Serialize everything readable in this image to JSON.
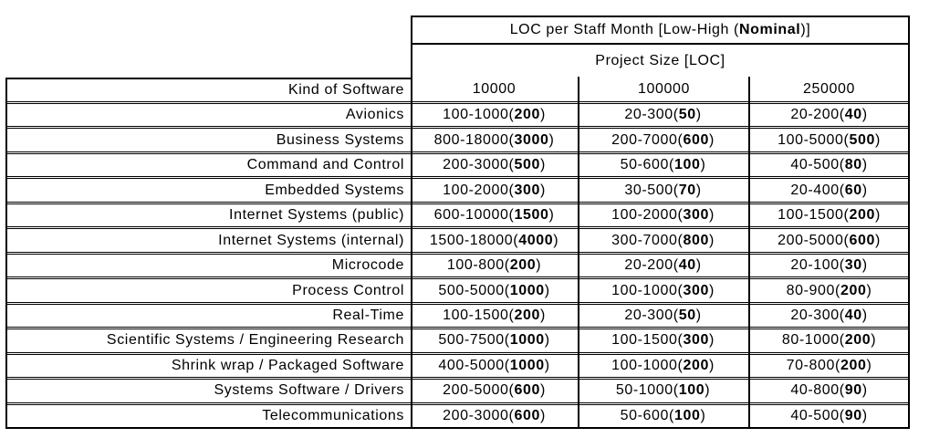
{
  "colors": {
    "background": "#ffffff",
    "border": "#000000",
    "text": "#000000"
  },
  "header": {
    "title_pre": "LOC per Staff Month [Low-High (",
    "title_bold": "Nominal",
    "title_post": ")]",
    "subtitle": "Project Size [LOC]",
    "kind_label": "Kind of Software",
    "sizes": [
      "10000",
      "100000",
      "250000"
    ]
  },
  "rows": [
    {
      "kind": "Avionics",
      "c1": {
        "pre": "100-1000(",
        "nom": "200",
        "post": ")"
      },
      "c2": {
        "pre": "20-300(",
        "nom": "50",
        "post": ")"
      },
      "c3": {
        "pre": "20-200(",
        "nom": "40",
        "post": ")"
      }
    },
    {
      "kind": "Business Systems",
      "c1": {
        "pre": "800-18000(",
        "nom": "3000",
        "post": ")"
      },
      "c2": {
        "pre": "200-7000(",
        "nom": "600",
        "post": ")"
      },
      "c3": {
        "pre": "100-5000(",
        "nom": "500",
        "post": ")"
      }
    },
    {
      "kind": "Command and Control",
      "c1": {
        "pre": "200-3000(",
        "nom": "500",
        "post": ")"
      },
      "c2": {
        "pre": "50-600(",
        "nom": "100",
        "post": ")"
      },
      "c3": {
        "pre": "40-500(",
        "nom": "80",
        "post": ")"
      }
    },
    {
      "kind": "Embedded Systems",
      "c1": {
        "pre": "100-2000(",
        "nom": "300",
        "post": ")"
      },
      "c2": {
        "pre": "30-500(",
        "nom": "70",
        "post": ")"
      },
      "c3": {
        "pre": "20-400(",
        "nom": "60",
        "post": ")"
      }
    },
    {
      "kind": "Internet Systems (public)",
      "c1": {
        "pre": "600-10000(",
        "nom": "1500",
        "post": ")"
      },
      "c2": {
        "pre": "100-2000(",
        "nom": "300",
        "post": ")"
      },
      "c3": {
        "pre": "100-1500(",
        "nom": "200",
        "post": ")"
      }
    },
    {
      "kind": "Internet Systems (internal)",
      "c1": {
        "pre": "1500-18000(",
        "nom": "4000",
        "post": ")"
      },
      "c2": {
        "pre": "300-7000(",
        "nom": "800",
        "post": ")"
      },
      "c3": {
        "pre": "200-5000(",
        "nom": "600",
        "post": ")"
      }
    },
    {
      "kind": "Microcode",
      "c1": {
        "pre": "100-800(",
        "nom": "200",
        "post": ")"
      },
      "c2": {
        "pre": "20-200(",
        "nom": "40",
        "post": ")"
      },
      "c3": {
        "pre": "20-100(",
        "nom": "30",
        "post": ")"
      }
    },
    {
      "kind": "Process Control",
      "c1": {
        "pre": "500-5000(",
        "nom": "1000",
        "post": ")"
      },
      "c2": {
        "pre": "100-1000(",
        "nom": "300",
        "post": ")"
      },
      "c3": {
        "pre": "80-900(",
        "nom": "200",
        "post": ")"
      }
    },
    {
      "kind": "Real-Time",
      "c1": {
        "pre": "100-1500(",
        "nom": "200",
        "post": ")"
      },
      "c2": {
        "pre": "20-300(",
        "nom": "50",
        "post": ")"
      },
      "c3": {
        "pre": "20-300(",
        "nom": "40",
        "post": ")"
      }
    },
    {
      "kind": "Scientific Systems / Engineering Research",
      "c1": {
        "pre": "500-7500(",
        "nom": "1000",
        "post": ")"
      },
      "c2": {
        "pre": "100-1500(",
        "nom": "300",
        "post": ")"
      },
      "c3": {
        "pre": "80-1000(",
        "nom": "200",
        "post": ")"
      }
    },
    {
      "kind": "Shrink wrap / Packaged Software",
      "c1": {
        "pre": "400-5000(",
        "nom": "1000",
        "post": ")"
      },
      "c2": {
        "pre": "100-1000(",
        "nom": "200",
        "post": ")"
      },
      "c3": {
        "pre": "70-800(",
        "nom": "200",
        "post": ")"
      }
    },
    {
      "kind": "Systems Software / Drivers",
      "c1": {
        "pre": "200-5000(",
        "nom": "600",
        "post": ")"
      },
      "c2": {
        "pre": "50-1000(",
        "nom": "100",
        "post": ")"
      },
      "c3": {
        "pre": "40-800(",
        "nom": "90",
        "post": ")"
      }
    },
    {
      "kind": "Telecommunications",
      "c1": {
        "pre": "200-3000(",
        "nom": "600",
        "post": ")"
      },
      "c2": {
        "pre": "50-600(",
        "nom": "100",
        "post": ")"
      },
      "c3": {
        "pre": "40-500(",
        "nom": "90",
        "post": ")"
      }
    }
  ]
}
